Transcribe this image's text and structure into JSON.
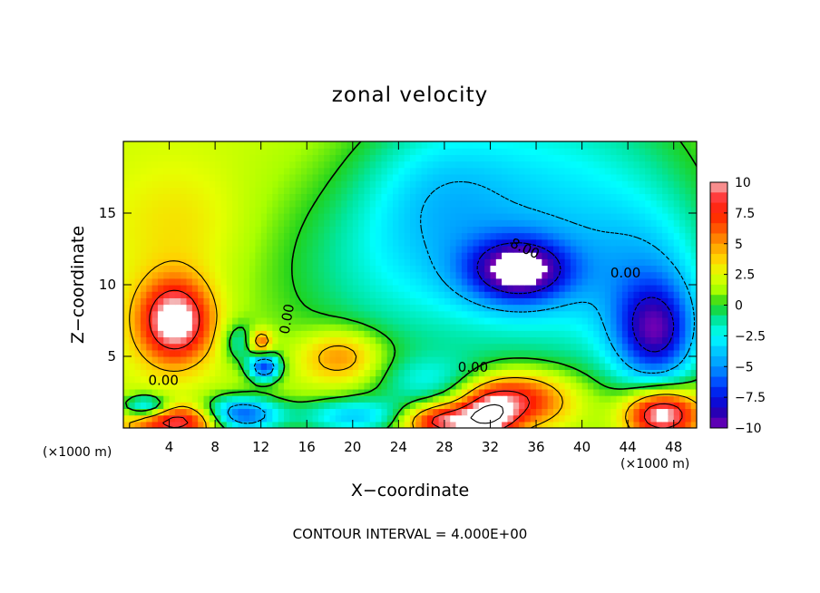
{
  "chart_data": {
    "type": "heatmap",
    "title": "zonal velocity",
    "xlabel": "X−coordinate",
    "ylabel": "Z−coordinate",
    "x_unit_left": "(×1000 m)",
    "x_unit_right": "(×1000 m)",
    "footer": "CONTOUR INTERVAL = 4.000E+00",
    "xlim": [
      0,
      50
    ],
    "ylim": [
      0,
      20
    ],
    "x_ticks": [
      {
        "value": 4,
        "label": "4"
      },
      {
        "value": 8,
        "label": "8"
      },
      {
        "value": 12,
        "label": "12"
      },
      {
        "value": 16,
        "label": "16"
      },
      {
        "value": 20,
        "label": "20"
      },
      {
        "value": 24,
        "label": "24"
      },
      {
        "value": 28,
        "label": "28"
      },
      {
        "value": 32,
        "label": "32"
      },
      {
        "value": 36,
        "label": "36"
      },
      {
        "value": 40,
        "label": "40"
      },
      {
        "value": 44,
        "label": "44"
      },
      {
        "value": 48,
        "label": "48"
      }
    ],
    "y_ticks": [
      {
        "value": 5,
        "label": "5"
      },
      {
        "value": 10,
        "label": "10"
      },
      {
        "value": 15,
        "label": "15"
      }
    ],
    "colorbar": {
      "range": [
        -10,
        10
      ],
      "ticks": [
        {
          "value": 10,
          "label": "10"
        },
        {
          "value": 7.5,
          "label": "7.5"
        },
        {
          "value": 5,
          "label": "5"
        },
        {
          "value": 2.5,
          "label": "2.5"
        },
        {
          "value": 0,
          "label": "0"
        },
        {
          "value": -2.5,
          "label": "−2.5"
        },
        {
          "value": -5,
          "label": "−5"
        },
        {
          "value": -7.5,
          "label": "−7.5"
        },
        {
          "value": -10,
          "label": "−10"
        }
      ],
      "stops": [
        {
          "value": 10,
          "color": "#f4b6b6"
        },
        {
          "value": 8.75,
          "color": "#ff3c3c"
        },
        {
          "value": 7.5,
          "color": "#ff1e00"
        },
        {
          "value": 6,
          "color": "#ff6000"
        },
        {
          "value": 5,
          "color": "#ff9a00"
        },
        {
          "value": 3.75,
          "color": "#ffd200"
        },
        {
          "value": 2.5,
          "color": "#e6ff00"
        },
        {
          "value": 1.25,
          "color": "#a8ff00"
        },
        {
          "value": 0,
          "color": "#1ed21e"
        },
        {
          "value": -1.25,
          "color": "#00e6a0"
        },
        {
          "value": -2.5,
          "color": "#00ffff"
        },
        {
          "value": -3.75,
          "color": "#00c8ff"
        },
        {
          "value": -5,
          "color": "#0096ff"
        },
        {
          "value": -6.25,
          "color": "#0050ff"
        },
        {
          "value": -7.5,
          "color": "#0010e6"
        },
        {
          "value": -8.75,
          "color": "#2800b4"
        },
        {
          "value": -10,
          "color": "#7800b4"
        }
      ]
    },
    "field": {
      "base": 2.0,
      "features": [
        {
          "x": 38,
          "y": 14,
          "sx": 9,
          "sy": 8,
          "a": -5
        },
        {
          "x": 34.5,
          "y": 11,
          "sx": 3.2,
          "sy": 1.6,
          "a": -8.5
        },
        {
          "x": 27,
          "y": 17,
          "sx": 5,
          "sy": 4,
          "a": -2.5
        },
        {
          "x": 46.5,
          "y": 6.5,
          "sx": 2.5,
          "sy": 2.5,
          "a": -7.5
        },
        {
          "x": 46,
          "y": 10,
          "sx": 4,
          "sy": 4,
          "a": -3
        },
        {
          "x": 22,
          "y": 11,
          "sx": 8,
          "sy": 5,
          "a": -2.8
        },
        {
          "x": 4.5,
          "y": 7.5,
          "sx": 2.2,
          "sy": 2.0,
          "a": 10
        },
        {
          "x": 19,
          "y": 5,
          "sx": 2.5,
          "sy": 1.3,
          "a": 4.5
        },
        {
          "x": 5,
          "y": 14,
          "sx": 4,
          "sy": 3,
          "a": 1.5
        },
        {
          "x": 12.3,
          "y": 4.3,
          "sx": 1.0,
          "sy": 0.7,
          "a": -8
        },
        {
          "x": 10,
          "y": 6,
          "sx": 1.0,
          "sy": 1.0,
          "a": -3
        },
        {
          "x": 12,
          "y": 6,
          "sx": 0.7,
          "sy": 0.6,
          "a": 5
        },
        {
          "x": 34,
          "y": 2,
          "sx": 3.5,
          "sy": 1.4,
          "a": 8
        },
        {
          "x": 32,
          "y": 0.8,
          "sx": 1.6,
          "sy": 1.1,
          "a": 6
        },
        {
          "x": 47,
          "y": 1,
          "sx": 2.2,
          "sy": 1.2,
          "a": 10
        },
        {
          "x": 28,
          "y": 0.5,
          "sx": 2.5,
          "sy": 0.8,
          "a": 8
        },
        {
          "x": 5,
          "y": 0.5,
          "sx": 3,
          "sy": 0.8,
          "a": 8
        },
        {
          "x": 10,
          "y": 0.9,
          "sx": 2.5,
          "sy": 0.9,
          "a": -9
        },
        {
          "x": 20,
          "y": 0.8,
          "sx": 3.5,
          "sy": 0.9,
          "a": -5
        },
        {
          "x": 2,
          "y": 1.5,
          "sx": 1.5,
          "sy": 0.6,
          "a": -6
        },
        {
          "x": 27,
          "y": 3.2,
          "sx": 3.5,
          "sy": 1.3,
          "a": -3
        }
      ]
    },
    "contour_labels": [
      {
        "x": 3.5,
        "y": 3.3,
        "text": "0.00",
        "rotate": 0
      },
      {
        "x": 30.5,
        "y": 4.2,
        "text": "0.00",
        "rotate": 0
      },
      {
        "x": 43.8,
        "y": 10.8,
        "text": "0.00",
        "rotate": 0
      },
      {
        "x": 14.3,
        "y": 7.6,
        "text": "0.00",
        "rotate": -80
      },
      {
        "x": 35.0,
        "y": 12.5,
        "text": "8.00",
        "rotate": 25
      }
    ]
  }
}
